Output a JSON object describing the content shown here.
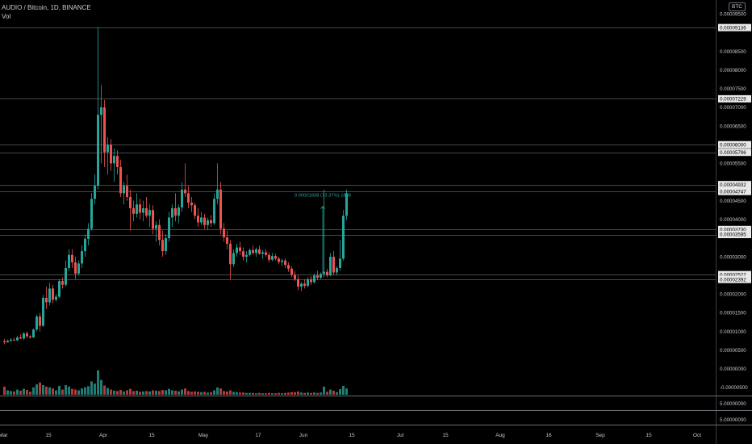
{
  "legend": {
    "title": "AUDIO / Bitcoin, 1D, BINANCE",
    "indicator": "Vol"
  },
  "currency_badge": "BTC",
  "colors": {
    "up": "#26a69a",
    "down": "#ef5350",
    "vol_up": "#1f7d74",
    "vol_down": "#b23a39",
    "background": "#000000",
    "level_line": "#8a8d94",
    "level_label_bg": "#e8e8e8"
  },
  "chart_data": {
    "type": "candlestick",
    "title": "AUDIO / Bitcoin, 1D, BINANCE",
    "y_ticks": [
      "0.00009500",
      "0.00008500",
      "0.00008000",
      "0.00007500",
      "0.00007000",
      "0.00006500",
      "0.00005500",
      "0.00004500",
      "0.00004000",
      "0.00003000",
      "0.00002000",
      "0.00001500",
      "0.00001000",
      "0.00000500",
      "0.00000000",
      "-0.00000500"
    ],
    "ylim": [
      -5e-06,
      9.55e-05
    ],
    "levels": [
      "0.00009136",
      "0.00007229",
      "0.00006000",
      "0.00005796",
      "0.00004932",
      "0.00004747",
      "0.00003730",
      "0.00003595",
      "0.00002522",
      "0.00002392"
    ],
    "x_labels": [
      "Mar",
      "15",
      "Apr",
      "15",
      "May",
      "17",
      "Jun",
      "15",
      "Jul",
      "15",
      "Aug",
      "16",
      "Sep",
      "15",
      "Oct",
      "18",
      "Nov",
      "15",
      "Dec"
    ],
    "x_label_days": [
      -37,
      -23,
      -6,
      9,
      25,
      42,
      56,
      71,
      86,
      100,
      117,
      132,
      148,
      163,
      178,
      196,
      209,
      224,
      239
    ],
    "start_date": "2021-01-08",
    "measure_label": "0.00001838 (73.37%) 1838",
    "volume_axis_ticks": [
      "5.00000000",
      "5.00000000"
    ],
    "candles": [
      [
        7.4e-06,
        8e-06,
        6.6e-06,
        7.1e-06,
        22
      ],
      [
        7.1e-06,
        7.8e-06,
        7e-06,
        7.5e-06,
        12
      ],
      [
        7.5e-06,
        8.2e-06,
        7.2e-06,
        7.8e-06,
        10
      ],
      [
        7.8e-06,
        8.3e-06,
        7.4e-06,
        7.6e-06,
        9
      ],
      [
        7.6e-06,
        8.8e-06,
        7.5e-06,
        8.4e-06,
        14
      ],
      [
        8.4e-06,
        9.2e-06,
        8e-06,
        8.1e-06,
        11
      ],
      [
        8.1e-06,
        9.8e-06,
        7.8e-06,
        9.5e-06,
        16
      ],
      [
        9.5e-06,
        1e-05,
        8.2e-06,
        8.7e-06,
        13
      ],
      [
        8.7e-06,
        9e-06,
        8.1e-06,
        8.4e-06,
        8
      ],
      [
        8.4e-06,
        1.08e-05,
        8.3e-06,
        1.05e-05,
        20
      ],
      [
        1.05e-05,
        1.45e-05,
        1e-05,
        1.4e-05,
        28
      ],
      [
        1.4e-05,
        1.5e-05,
        1e-05,
        1.15e-05,
        33
      ],
      [
        1.15e-05,
        1.98e-05,
        1.12e-05,
        1.9e-05,
        26
      ],
      [
        1.9e-05,
        2.2e-05,
        1.6e-05,
        1.78e-05,
        22
      ],
      [
        1.78e-05,
        2.3e-05,
        1.7e-05,
        2.15e-05,
        20
      ],
      [
        2.15e-05,
        2.25e-05,
        1.75e-05,
        1.85e-05,
        17
      ],
      [
        1.85e-05,
        2e-05,
        1.8e-05,
        1.93e-05,
        12
      ],
      [
        1.93e-05,
        2.4e-05,
        1.9e-05,
        2.35e-05,
        24
      ],
      [
        2.35e-05,
        2.45e-05,
        2.15e-05,
        2.25e-05,
        14
      ],
      [
        2.25e-05,
        2.9e-05,
        2.2e-05,
        2.7e-05,
        26
      ],
      [
        2.7e-05,
        3.2e-05,
        2.62e-05,
        3.05e-05,
        22
      ],
      [
        3.05e-05,
        3.2e-05,
        2.7e-05,
        2.85e-05,
        16
      ],
      [
        2.85e-05,
        3e-05,
        2.4e-05,
        2.55e-05,
        14
      ],
      [
        2.55e-05,
        2.9e-05,
        2.5e-05,
        2.82e-05,
        12
      ],
      [
        2.82e-05,
        3.3e-05,
        2.7e-05,
        3.15e-05,
        17
      ],
      [
        3.15e-05,
        3.6e-05,
        3e-05,
        3.48e-05,
        20
      ],
      [
        3.48e-05,
        3.9e-05,
        3.3e-05,
        3.75e-05,
        23
      ],
      [
        3.75e-05,
        4.7e-05,
        3.7e-05,
        4.55e-05,
        36
      ],
      [
        4.55e-05,
        5.2e-05,
        4.4e-05,
        4.9e-05,
        30
      ],
      [
        4.9e-05,
        9.15e-05,
        4.8e-05,
        6.8e-05,
        66
      ],
      [
        6.8e-05,
        7.6e-05,
        5.5e-05,
        7e-05,
        40
      ],
      [
        7e-05,
        7.2e-05,
        5.4e-05,
        5.8e-05,
        25
      ],
      [
        5.8e-05,
        6.2e-05,
        5.2e-05,
        6e-05,
        18
      ],
      [
        6e-05,
        6.15e-05,
        5.3e-05,
        5.5e-05,
        14
      ],
      [
        5.5e-05,
        5.9e-05,
        5e-05,
        5.7e-05,
        11
      ],
      [
        5.7e-05,
        5.85e-05,
        5.2e-05,
        5.4e-05,
        10
      ],
      [
        5.4e-05,
        5.6e-05,
        4.6e-05,
        4.7e-05,
        13
      ],
      [
        4.7e-05,
        5e-05,
        4.4e-05,
        4.9e-05,
        9
      ],
      [
        4.9e-05,
        5.2e-05,
        4.5e-05,
        4.6e-05,
        12
      ],
      [
        4.6e-05,
        4.8e-05,
        3.7e-05,
        4.3e-05,
        16
      ],
      [
        4.3e-05,
        4.5e-05,
        3.95e-05,
        4.15e-05,
        10
      ],
      [
        4.15e-05,
        4.7e-05,
        4.05e-05,
        4.4e-05,
        11
      ],
      [
        4.4e-05,
        4.55e-05,
        4e-05,
        4.18e-05,
        8
      ],
      [
        4.18e-05,
        4.5e-05,
        3.95e-05,
        4.3e-05,
        9
      ],
      [
        4.3e-05,
        4.6e-05,
        4.05e-05,
        4.1e-05,
        10
      ],
      [
        4.1e-05,
        4.4e-05,
        3.8e-05,
        4.25e-05,
        9
      ],
      [
        4.25e-05,
        4.38e-05,
        3.6e-05,
        3.75e-05,
        12
      ],
      [
        3.75e-05,
        3.95e-05,
        3.4e-05,
        3.85e-05,
        11
      ],
      [
        3.85e-05,
        4e-05,
        3.3e-05,
        3.45e-05,
        10
      ],
      [
        3.45e-05,
        3.7e-05,
        3e-05,
        3.15e-05,
        13
      ],
      [
        3.15e-05,
        3.6e-05,
        3.05e-05,
        3.5e-05,
        12
      ],
      [
        3.5e-05,
        4.2e-05,
        3.4e-05,
        4.05e-05,
        16
      ],
      [
        4.05e-05,
        4.4e-05,
        3.8e-05,
        4.3e-05,
        12
      ],
      [
        4.3e-05,
        4.7e-05,
        3.95e-05,
        4.1e-05,
        11
      ],
      [
        4.1e-05,
        4.4e-05,
        3.9e-05,
        4.32e-05,
        9
      ],
      [
        4.32e-05,
        5e-05,
        4.2e-05,
        4.8e-05,
        14
      ],
      [
        4.8e-05,
        5.5e-05,
        4.6e-05,
        4.7e-05,
        17
      ],
      [
        4.7e-05,
        4.9e-05,
        4.3e-05,
        4.45e-05,
        10
      ],
      [
        4.45e-05,
        4.6e-05,
        4.2e-05,
        4.38e-05,
        8
      ],
      [
        4.38e-05,
        4.45e-05,
        4e-05,
        4.1e-05,
        9
      ],
      [
        4.1e-05,
        4.3e-05,
        3.8e-05,
        3.92e-05,
        8
      ],
      [
        3.92e-05,
        4.2e-05,
        3.85e-05,
        4.05e-05,
        7
      ],
      [
        4.05e-05,
        4.15e-05,
        3.75e-05,
        3.85e-05,
        8
      ],
      [
        3.85e-05,
        4.05e-05,
        3.72e-05,
        3.98e-05,
        6
      ],
      [
        3.98e-05,
        4.12e-05,
        3.8e-05,
        3.9e-05,
        7
      ],
      [
        3.9e-05,
        4.7e-05,
        3.85e-05,
        4.55e-05,
        12
      ],
      [
        4.55e-05,
        5.5e-05,
        4.4e-05,
        4.8e-05,
        20
      ],
      [
        4.8e-05,
        5e-05,
        3.6e-05,
        3.75e-05,
        17
      ],
      [
        3.75e-05,
        3.9e-05,
        3.4e-05,
        3.52e-05,
        10
      ],
      [
        3.52e-05,
        3.7e-05,
        3.2e-05,
        3.35e-05,
        9
      ],
      [
        3.35e-05,
        3.45e-05,
        2.4e-05,
        2.8e-05,
        12
      ],
      [
        2.8e-05,
        3.2e-05,
        2.72e-05,
        3.1e-05,
        8
      ],
      [
        3.1e-05,
        3.35e-05,
        3e-05,
        3.25e-05,
        7
      ],
      [
        3.25e-05,
        3.4e-05,
        3.05e-05,
        3.15e-05,
        6
      ],
      [
        3.15e-05,
        3.25e-05,
        2.9e-05,
        3e-05,
        6
      ],
      [
        3e-05,
        3.15e-05,
        2.85e-05,
        3.05e-05,
        5
      ],
      [
        3.05e-05,
        3.22e-05,
        3e-05,
        3.18e-05,
        5
      ],
      [
        3.18e-05,
        3.3e-05,
        3.05e-05,
        3.1e-05,
        5
      ],
      [
        3.1e-05,
        3.25e-05,
        3e-05,
        3.2e-05,
        4
      ],
      [
        3.2e-05,
        3.3e-05,
        3.05e-05,
        3.08e-05,
        5
      ],
      [
        3.08e-05,
        3.18e-05,
        2.95e-05,
        3.12e-05,
        4
      ],
      [
        3.12e-05,
        3.2e-05,
        3e-05,
        3.05e-05,
        4
      ],
      [
        3.05e-05,
        3.12e-05,
        2.85e-05,
        2.92e-05,
        5
      ],
      [
        2.92e-05,
        3.1e-05,
        2.88e-05,
        3.02e-05,
        4
      ],
      [
        3.02e-05,
        3.08e-05,
        2.9e-05,
        2.95e-05,
        4
      ],
      [
        2.95e-05,
        3e-05,
        2.8e-05,
        2.86e-05,
        5
      ],
      [
        2.86e-05,
        2.95e-05,
        2.75e-05,
        2.9e-05,
        4
      ],
      [
        2.9e-05,
        2.96e-05,
        2.7e-05,
        2.78e-05,
        5
      ],
      [
        2.78e-05,
        2.85e-05,
        2.6e-05,
        2.68e-05,
        6
      ],
      [
        2.68e-05,
        2.75e-05,
        2.45e-05,
        2.52e-05,
        7
      ],
      [
        2.52e-05,
        2.62e-05,
        2.35e-05,
        2.4e-05,
        7
      ],
      [
        2.4e-05,
        2.5e-05,
        2.1e-05,
        2.2e-05,
        9
      ],
      [
        2.2e-05,
        2.32e-05,
        2.08e-05,
        2.28e-05,
        6
      ],
      [
        2.28e-05,
        2.4e-05,
        2.15e-05,
        2.22e-05,
        5
      ],
      [
        2.22e-05,
        2.45e-05,
        2.18e-05,
        2.4e-05,
        6
      ],
      [
        2.4e-05,
        2.48e-05,
        2.25e-05,
        2.32e-05,
        5
      ],
      [
        2.32e-05,
        2.55e-05,
        2.28e-05,
        2.5e-05,
        6
      ],
      [
        2.5e-05,
        2.62e-05,
        2.38e-05,
        2.44e-05,
        5
      ],
      [
        2.44e-05,
        2.58e-05,
        2.4e-05,
        2.54e-05,
        6
      ],
      [
        2.54e-05,
        4.8e-05,
        2.45e-05,
        2.6e-05,
        22
      ],
      [
        2.6e-05,
        2.68e-05,
        2.45e-05,
        2.5e-05,
        8
      ],
      [
        2.5e-05,
        3.1e-05,
        2.48e-05,
        3e-05,
        14
      ],
      [
        3e-05,
        3.15e-05,
        2.5e-05,
        2.58e-05,
        11
      ],
      [
        2.58e-05,
        2.75e-05,
        2.5e-05,
        2.7e-05,
        7
      ],
      [
        2.7e-05,
        3.45e-05,
        2.62e-05,
        2.95e-05,
        15
      ],
      [
        2.95e-05,
        4.25e-05,
        2.9e-05,
        4.1e-05,
        24
      ],
      [
        4.1e-05,
        4.8e-05,
        3.98e-05,
        4.7e-05,
        17
      ]
    ]
  }
}
